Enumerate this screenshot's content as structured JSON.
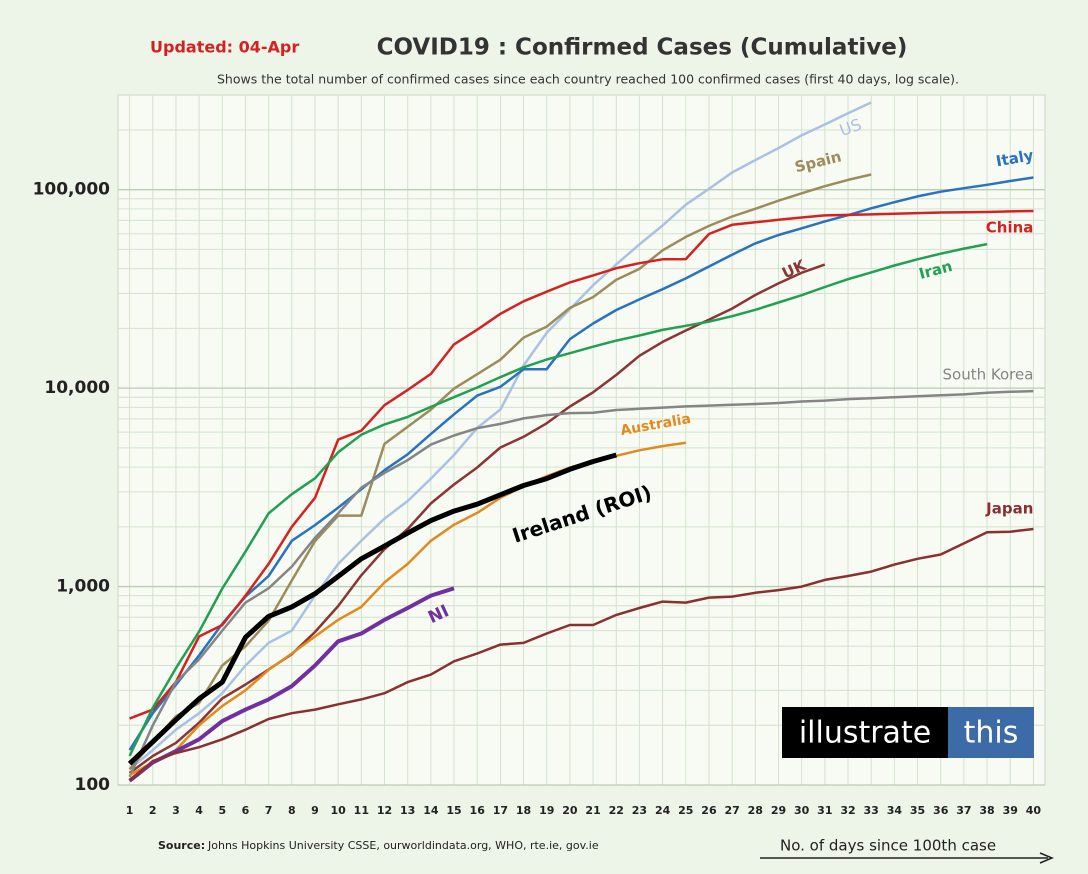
{
  "chart_data": {
    "type": "line",
    "updated": "Updated: 04-Apr",
    "title": "COVID19 : Confirmed Cases (Cumulative)",
    "subtitle": "Shows the total number of confirmed cases since each country reached 100 confirmed cases (first 40 days, log scale).",
    "source_label": "Source:",
    "source_text": "Johns Hopkins University CSSE, ourworldindata.org, WHO, rte.ie, gov.ie",
    "x_label": "No. of days since 100th case",
    "logo": [
      "illustrate",
      "this"
    ],
    "log_scale": true,
    "grid": true,
    "xlim": [
      0.5,
      40.5
    ],
    "xticks": [
      1,
      2,
      3,
      4,
      5,
      6,
      7,
      8,
      9,
      10,
      11,
      12,
      13,
      14,
      15,
      16,
      17,
      18,
      19,
      20,
      21,
      22,
      23,
      24,
      25,
      26,
      27,
      28,
      29,
      30,
      31,
      32,
      33,
      34,
      35,
      36,
      37,
      38,
      39,
      40
    ],
    "ylim": [
      100,
      300000
    ],
    "yticks": [
      {
        "value": 100,
        "label": "100"
      },
      {
        "value": 1000,
        "label": "1,000"
      },
      {
        "value": 10000,
        "label": "10,000"
      },
      {
        "value": 100000,
        "label": "100,000"
      }
    ],
    "x": [
      1,
      2,
      3,
      4,
      5,
      6,
      7,
      8,
      9,
      10,
      11,
      12,
      13,
      14,
      15,
      16,
      17,
      18,
      19,
      20,
      21,
      22,
      23,
      24,
      25,
      26,
      27,
      28,
      29,
      30,
      31,
      32,
      33,
      34,
      35,
      36,
      37,
      38,
      39,
      40
    ],
    "series": [
      {
        "name": "US",
        "color": "#a9c1e2",
        "values": [
          120,
          150,
          190,
          230,
          290,
          400,
          520,
          600,
          900,
          1300,
          1700,
          2200,
          2700,
          3500,
          4600,
          6300,
          7800,
          13000,
          19000,
          25000,
          33000,
          42000,
          53000,
          66000,
          84000,
          101000,
          122000,
          141000,
          162000,
          188000,
          213000,
          243000,
          275000,
          null,
          null,
          null,
          null,
          null,
          null,
          null
        ]
      },
      {
        "name": "Spain",
        "color": "#9c8b5b",
        "values": [
          120,
          165,
          222,
          259,
          400,
          500,
          673,
          1073,
          1695,
          2277,
          2277,
          5232,
          6391,
          7798,
          9942,
          11748,
          13910,
          17963,
          20410,
          25374,
          28768,
          35136,
          39885,
          49515,
          57786,
          65719,
          73235,
          80110,
          87956,
          95923,
          104118,
          112065,
          119199,
          null,
          null,
          null,
          null,
          null,
          null,
          null
        ]
      },
      {
        "name": "Italy",
        "color": "#2a72c0",
        "values": [
          150,
          230,
          320,
          450,
          650,
          890,
          1130,
          1700,
          2040,
          2500,
          3090,
          3860,
          4640,
          5880,
          7380,
          9170,
          10150,
          12460,
          12460,
          17660,
          21160,
          24750,
          27980,
          31500,
          35700,
          41000,
          47000,
          53600,
          59100,
          63900,
          69200,
          74400,
          80600,
          86500,
          92500,
          97700,
          101700,
          105800,
          110600,
          115200
        ]
      },
      {
        "name": "China",
        "color": "#d42222",
        "values": [
          216,
          240,
          330,
          560,
          640,
          900,
          1300,
          2000,
          2800,
          5500,
          6100,
          8200,
          9800,
          11800,
          16600,
          19700,
          23700,
          27400,
          30600,
          34100,
          37000,
          40200,
          42600,
          44600,
          44700,
          59800,
          66500,
          68500,
          70500,
          72400,
          74200,
          74600,
          75100,
          75700,
          76200,
          76700,
          77000,
          77200,
          77700,
          78100
        ]
      },
      {
        "name": "UK",
        "color": "#8b3535",
        "values": [
          115,
          140,
          163,
          206,
          273,
          321,
          382,
          456,
          590,
          798,
          1140,
          1543,
          1950,
          2626,
          3269,
          3983,
          5018,
          5683,
          6650,
          8077,
          9529,
          11658,
          14543,
          17089,
          19522,
          22141,
          25150,
          29474,
          33718,
          38168,
          41903,
          null,
          null,
          null,
          null,
          null,
          null,
          null,
          null,
          null
        ]
      },
      {
        "name": "Iran",
        "color": "#22a052",
        "values": [
          140,
          245,
          388,
          593,
          978,
          1501,
          2336,
          2922,
          3513,
          4747,
          5823,
          6566,
          7161,
          8042,
          9000,
          10075,
          11364,
          12729,
          13938,
          14991,
          16169,
          17361,
          18407,
          19644,
          20610,
          21638,
          23049,
          24811,
          27017,
          29406,
          32332,
          35408,
          38309,
          41495,
          44605,
          47593,
          50468,
          53183,
          null,
          null
        ]
      },
      {
        "name": "South Korea",
        "color": "#858585",
        "values": [
          110,
          200,
          330,
          430,
          600,
          830,
          980,
          1260,
          1760,
          2340,
          3150,
          3740,
          4340,
          5190,
          5770,
          6280,
          6600,
          7040,
          7310,
          7480,
          7510,
          7760,
          7870,
          7980,
          8090,
          8160,
          8240,
          8320,
          8410,
          8560,
          8650,
          8800,
          8900,
          9000,
          9100,
          9200,
          9300,
          9480,
          9580,
          9660
        ]
      },
      {
        "name": "Australia",
        "color": "#e38a1e",
        "values": [
          112,
          130,
          150,
          200,
          250,
          300,
          380,
          460,
          560,
          680,
          790,
          1050,
          1300,
          1700,
          2050,
          2350,
          2800,
          3200,
          3600,
          3980,
          4250,
          4560,
          4860,
          5100,
          5300,
          null,
          null,
          null,
          null,
          null,
          null,
          null,
          null,
          null,
          null,
          null,
          null,
          null,
          null,
          null
        ]
      },
      {
        "name": "Ireland (ROI)",
        "color": "#000000",
        "values": [
          128,
          165,
          213,
          272,
          330,
          555,
          707,
          790,
          920,
          1125,
          1380,
          1600,
          1860,
          2150,
          2400,
          2600,
          2900,
          3230,
          3500,
          3900,
          4270,
          4600,
          null,
          null,
          null,
          null,
          null,
          null,
          null,
          null,
          null,
          null,
          null,
          null,
          null,
          null,
          null,
          null,
          null,
          null
        ]
      },
      {
        "name": "NI",
        "color": "#7030a0",
        "values": [
          105,
          130,
          148,
          170,
          210,
          240,
          270,
          315,
          400,
          530,
          580,
          680,
          780,
          900,
          980,
          null,
          null,
          null,
          null,
          null,
          null,
          null,
          null,
          null,
          null,
          null,
          null,
          null,
          null,
          null,
          null,
          null,
          null,
          null,
          null,
          null,
          null,
          null,
          null,
          null
        ]
      },
      {
        "name": "Japan",
        "color": "#8b2f2f",
        "values": [
          105,
          132,
          145,
          155,
          170,
          190,
          215,
          230,
          240,
          255,
          270,
          290,
          330,
          360,
          420,
          460,
          510,
          520,
          580,
          640,
          640,
          720,
          780,
          840,
          830,
          880,
          890,
          930,
          960,
          1000,
          1080,
          1130,
          1190,
          1290,
          1380,
          1450,
          1650,
          1880,
          1890,
          1950
        ]
      }
    ]
  }
}
